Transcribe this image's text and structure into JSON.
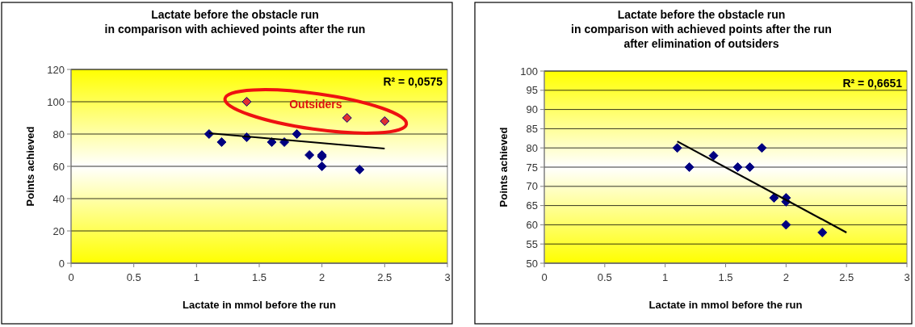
{
  "chart_data": [
    {
      "type": "scatter",
      "title": "Lactate before the obstacle run\nin comparison with achieved points after the run",
      "xlabel": "Lactate in mmol before the run",
      "ylabel": "Points achieved",
      "xlim": [
        0,
        3
      ],
      "xticks": [
        0,
        0.5,
        1,
        1.5,
        2,
        2.5,
        3
      ],
      "ylim": [
        0,
        120
      ],
      "yticks": [
        0,
        20,
        40,
        60,
        80,
        100,
        120
      ],
      "grid": "y",
      "marker": "diamond",
      "annotations": [
        "R² = 0,0575",
        "Outsiders"
      ],
      "series": [
        {
          "color": "#000080",
          "x": [
            1.1,
            1.2,
            1.4,
            1.6,
            1.7,
            1.8,
            1.9,
            2.0,
            2.0,
            2.0,
            2.3
          ],
          "values": [
            80,
            75,
            78,
            75,
            75,
            80,
            67,
            67,
            66,
            60,
            58
          ]
        },
        {
          "color": "#e03030",
          "x": [
            1.4,
            2.2,
            2.5
          ],
          "values": [
            100,
            90,
            88
          ]
        },
        {
          "type": "line",
          "color": "#000000",
          "marker": "none",
          "x": [
            1.1,
            2.5
          ],
          "values": [
            80.5,
            71
          ]
        }
      ]
    },
    {
      "type": "scatter",
      "title": "Lactate before the obstacle run\nin comparison with achieved points after the run\nafter elimination of outsiders",
      "xlabel": "Lactate in mmol before the run",
      "ylabel": "Points achieved",
      "xlim": [
        0,
        3
      ],
      "xticks": [
        0,
        0.5,
        1,
        1.5,
        2,
        2.5,
        3
      ],
      "ylim": [
        50,
        100
      ],
      "yticks": [
        50,
        55,
        60,
        65,
        70,
        75,
        80,
        85,
        90,
        95,
        100
      ],
      "grid": "y",
      "marker": "diamond",
      "annotations": [
        "R² = 0,6651"
      ],
      "series": [
        {
          "color": "#000080",
          "x": [
            1.1,
            1.2,
            1.4,
            1.6,
            1.7,
            1.8,
            1.9,
            2.0,
            2.0,
            2.0,
            2.3
          ],
          "values": [
            80,
            75,
            78,
            75,
            75,
            80,
            67,
            67,
            66,
            60,
            58
          ]
        },
        {
          "type": "line",
          "color": "#000000",
          "marker": "none",
          "x": [
            1.1,
            2.5
          ],
          "values": [
            81.7,
            58
          ]
        }
      ]
    }
  ]
}
